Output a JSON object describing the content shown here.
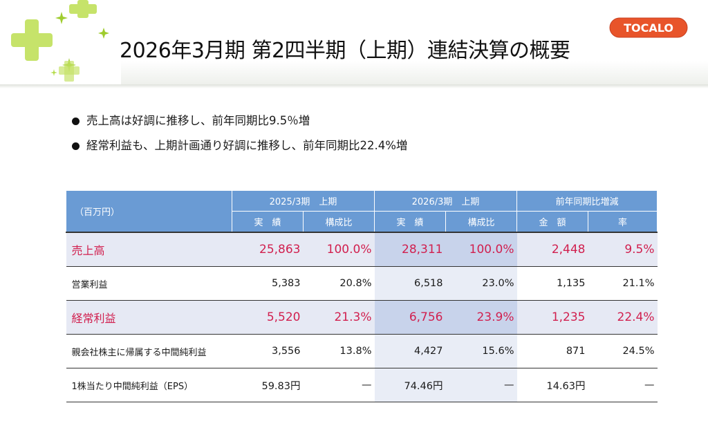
{
  "title": "2026年3月期 第2四半期（上期）連結決算の概要",
  "logo_text": "TOCALO",
  "bullets": [
    "売上高は好調に推移し、前年同期比9.5％増",
    "経常利益も、上期計画通り好調に推移し、前年同期比22.4%増"
  ],
  "table": {
    "unit": "（百万円）",
    "groups": [
      "2025/3期　上期",
      "2026/3期　上期",
      "前年同期比増減"
    ],
    "subheaders": [
      "実　績",
      "構成比",
      "実　績",
      "構成比",
      "金　額",
      "率"
    ],
    "rows": [
      {
        "label": "売上高",
        "cells": [
          "25,863",
          "100.0%",
          "28,311",
          "100.0%",
          "2,448",
          "9.5%"
        ]
      },
      {
        "label": "営業利益",
        "cells": [
          "5,383",
          "20.8%",
          "6,518",
          "23.0%",
          "1,135",
          "21.1%"
        ]
      },
      {
        "label": "経常利益",
        "cells": [
          "5,520",
          "21.3%",
          "6,756",
          "23.9%",
          "1,235",
          "22.4%"
        ]
      },
      {
        "label": "親会社株主に帰属する中間純利益",
        "cells": [
          "3,556",
          "13.8%",
          "4,427",
          "15.6%",
          "871",
          "24.5%"
        ]
      },
      {
        "label": "1株当たり中間純利益（EPS）",
        "cells": [
          "59.83円",
          "—",
          "74.46円",
          "—",
          "14.63円",
          "—"
        ]
      }
    ]
  },
  "colors": {
    "header_blue": "#6a9bd4",
    "highlight_red": "#d11f4e",
    "highlight_row_bg": "#e6e9f4",
    "current_period_bg": "#c8d3eb",
    "logo_orange": "#e8542a",
    "sparkle_green": "#b4dc4a"
  },
  "icons": [
    "sparkle-decoration-icon",
    "tocalo-logo"
  ]
}
